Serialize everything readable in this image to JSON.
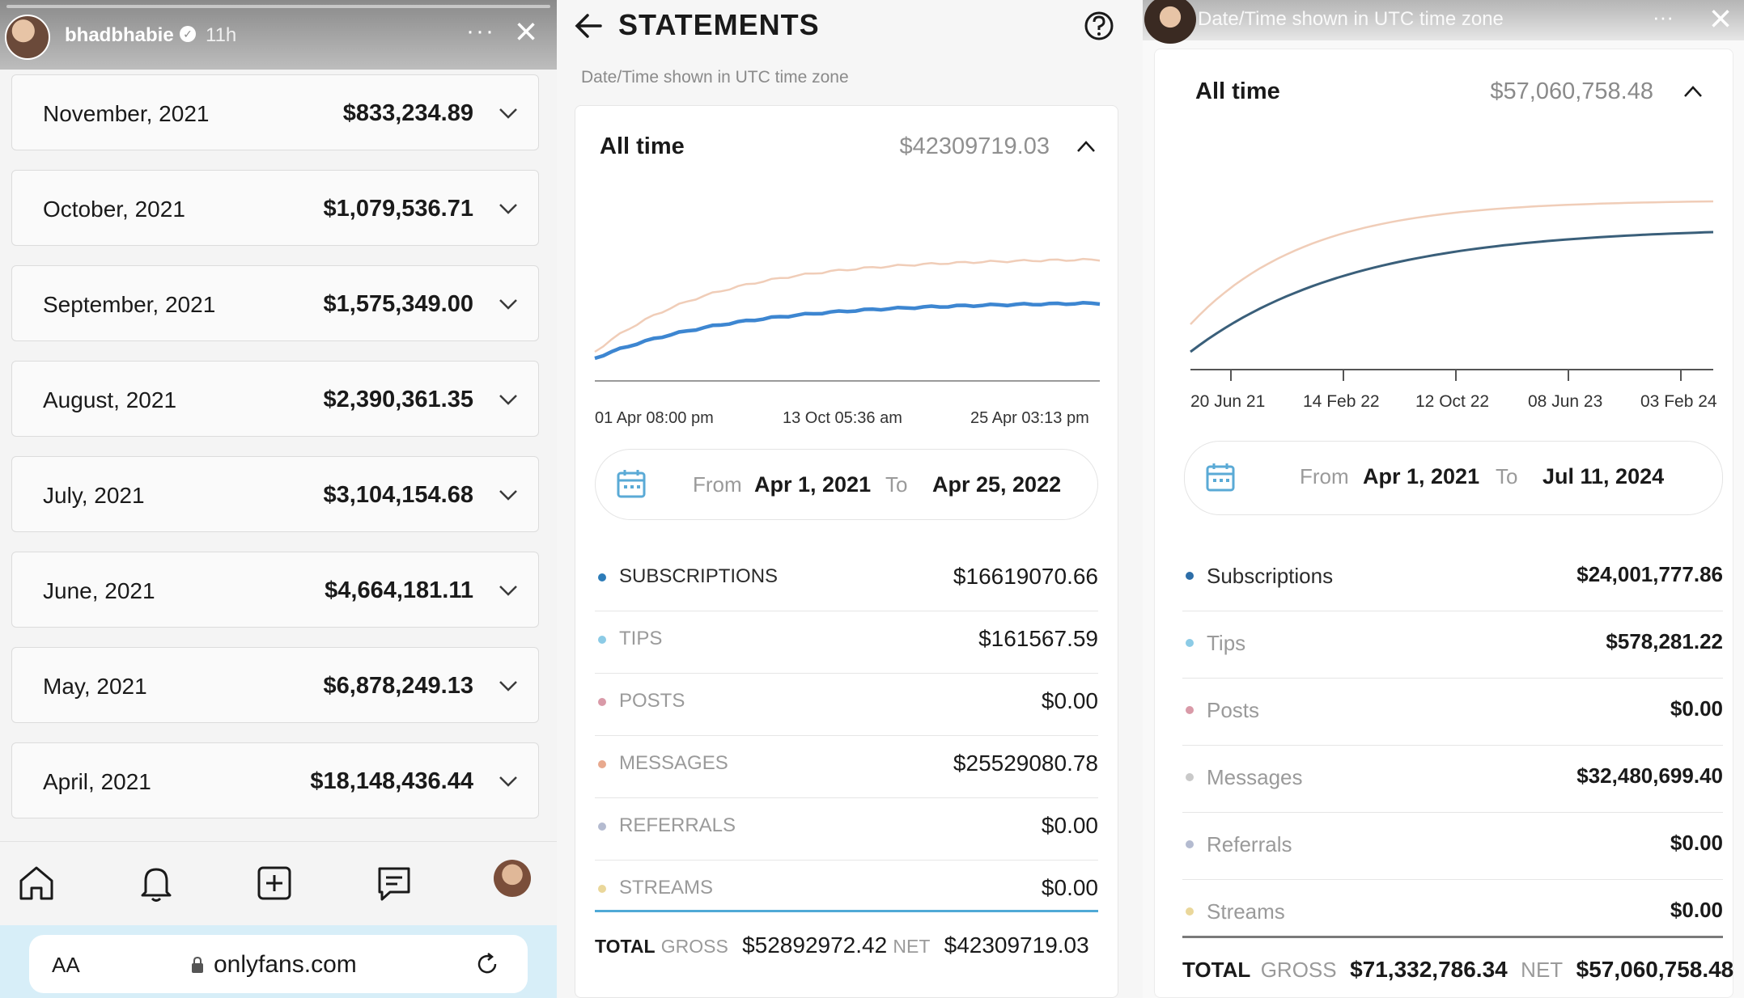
{
  "story_left": {
    "username": "bhadbhabie",
    "time_ago": "11h",
    "months": [
      {
        "label": "November, 2021",
        "amount": "$833,234.89"
      },
      {
        "label": "October, 2021",
        "amount": "$1,079,536.71"
      },
      {
        "label": "September, 2021",
        "amount": "$1,575,349.00"
      },
      {
        "label": "August, 2021",
        "amount": "$2,390,361.35"
      },
      {
        "label": "July, 2021",
        "amount": "$3,104,154.68"
      },
      {
        "label": "June, 2021",
        "amount": "$4,664,181.11"
      },
      {
        "label": "May, 2021",
        "amount": "$6,878,249.13"
      },
      {
        "label": "April, 2021",
        "amount": "$18,148,436.44"
      }
    ],
    "nav_icons": [
      "home-icon",
      "bell-icon",
      "plus-square-icon",
      "message-icon",
      "avatar"
    ],
    "browser": {
      "text_size_label": "AA",
      "url": "onlyfans.com"
    }
  },
  "statements_mid": {
    "title": "STATEMENTS",
    "note": "Date/Time shown in UTC time zone",
    "period_label": "All time",
    "period_value": "$42309719.03",
    "x_ticks": [
      "01 Apr 08:00 pm",
      "13 Oct 05:36 am",
      "25 Apr 03:13 pm"
    ],
    "range": {
      "from_label": "From",
      "from_date": "Apr 1, 2021",
      "to_label": "To",
      "to_date": "Apr 25, 2022"
    },
    "categories": [
      {
        "name": "SUBSCRIPTIONS",
        "amount": "$16619070.66",
        "color": "#2d7cb8"
      },
      {
        "name": "TIPS",
        "amount": "$161567.59",
        "color": "#8ccbe6"
      },
      {
        "name": "POSTS",
        "amount": "$0.00",
        "color": "#d99aa8"
      },
      {
        "name": "MESSAGES",
        "amount": "$25529080.78",
        "color": "#e8a98e"
      },
      {
        "name": "REFERRALS",
        "amount": "$0.00",
        "color": "#b4bbd0"
      },
      {
        "name": "STREAMS",
        "amount": "$0.00",
        "color": "#ead79a"
      }
    ],
    "total": {
      "total_label": "TOTAL",
      "gross_label": "GROSS",
      "gross": "$52892972.42",
      "net_label": "NET",
      "net": "$42309719.03"
    }
  },
  "statements_right": {
    "header_text": "Date/Time shown in UTC time zone",
    "period_label": "All time",
    "period_value": "$57,060,758.48",
    "x_ticks": [
      "20 Jun 21",
      "14 Feb 22",
      "12 Oct 22",
      "08 Jun 23",
      "03 Feb 24"
    ],
    "range": {
      "from_label": "From",
      "from_date": "Apr 1, 2021",
      "to_label": "To",
      "to_date": "Jul 11, 2024"
    },
    "categories": [
      {
        "name": "Subscriptions",
        "amount": "$24,001,777.86",
        "color": "#2d6ea8"
      },
      {
        "name": "Tips",
        "amount": "$578,281.22",
        "color": "#8ccbe6"
      },
      {
        "name": "Posts",
        "amount": "$0.00",
        "color": "#d99aa8"
      },
      {
        "name": "Messages",
        "amount": "$32,480,699.40",
        "color": "#c9c9c9"
      },
      {
        "name": "Referrals",
        "amount": "$0.00",
        "color": "#b4bbd0"
      },
      {
        "name": "Streams",
        "amount": "$0.00",
        "color": "#ead79a"
      }
    ],
    "total": {
      "total_label": "TOTAL",
      "gross_label": "GROSS",
      "gross": "$71,332,786.34",
      "net_label": "NET",
      "net": "$57,060,758.48"
    }
  },
  "colors": {
    "gross_line": "#f0cdb8",
    "net_line_mid": "#3d86d1",
    "net_line_right": "#3a5f7a",
    "total_divider": "#4fa9d6"
  }
}
